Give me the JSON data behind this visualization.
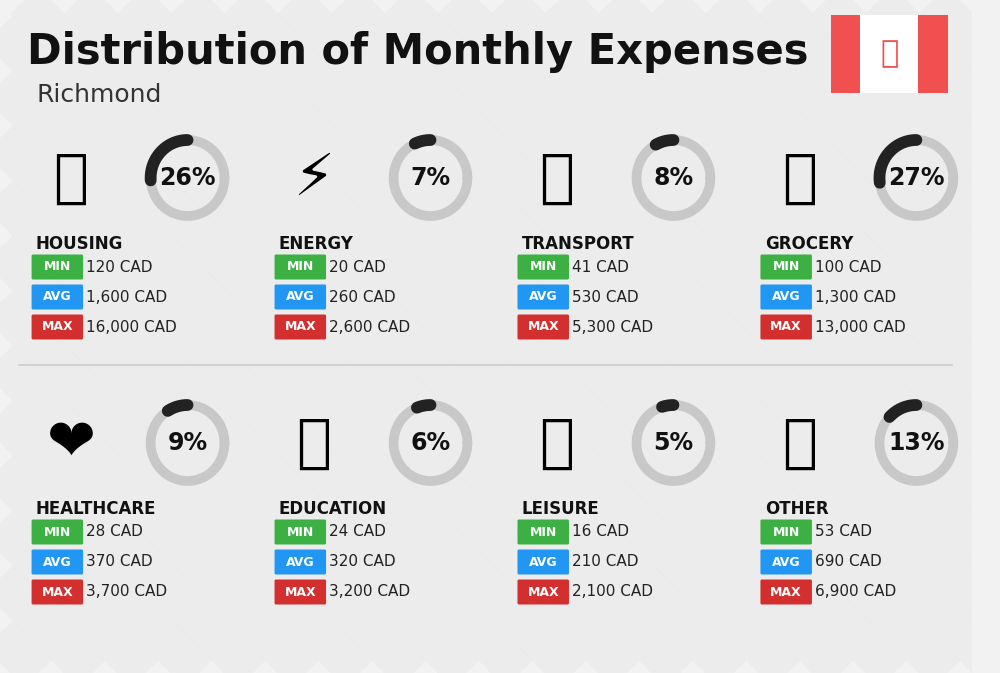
{
  "title": "Distribution of Monthly Expenses",
  "subtitle": "Richmond",
  "background_color": "#f2f2f2",
  "stripe_color": "#e8e8e8",
  "categories": [
    {
      "name": "HOUSING",
      "percent": 26,
      "min": "120 CAD",
      "avg": "1,600 CAD",
      "max": "16,000 CAD",
      "icon": "🏗",
      "row": 0,
      "col": 0
    },
    {
      "name": "ENERGY",
      "percent": 7,
      "min": "20 CAD",
      "avg": "260 CAD",
      "max": "2,600 CAD",
      "icon": "⚡",
      "row": 0,
      "col": 1
    },
    {
      "name": "TRANSPORT",
      "percent": 8,
      "min": "41 CAD",
      "avg": "530 CAD",
      "max": "5,300 CAD",
      "icon": "🚌",
      "row": 0,
      "col": 2
    },
    {
      "name": "GROCERY",
      "percent": 27,
      "min": "100 CAD",
      "avg": "1,300 CAD",
      "max": "13,000 CAD",
      "icon": "🛒",
      "row": 0,
      "col": 3
    },
    {
      "name": "HEALTHCARE",
      "percent": 9,
      "min": "28 CAD",
      "avg": "370 CAD",
      "max": "3,700 CAD",
      "icon": "❤",
      "row": 1,
      "col": 0
    },
    {
      "name": "EDUCATION",
      "percent": 6,
      "min": "24 CAD",
      "avg": "320 CAD",
      "max": "3,200 CAD",
      "icon": "🎓",
      "row": 1,
      "col": 1
    },
    {
      "name": "LEISURE",
      "percent": 5,
      "min": "16 CAD",
      "avg": "210 CAD",
      "max": "2,100 CAD",
      "icon": "🛍",
      "row": 1,
      "col": 2
    },
    {
      "name": "OTHER",
      "percent": 13,
      "min": "53 CAD",
      "avg": "690 CAD",
      "max": "6,900 CAD",
      "icon": "💰",
      "row": 1,
      "col": 3
    }
  ],
  "min_color": "#3cb043",
  "avg_color": "#2196f3",
  "max_color": "#d32f2f",
  "arc_dark_color": "#222222",
  "arc_light_color": "#c8c8c8",
  "flag_red": "#f05050",
  "title_fontsize": 30,
  "subtitle_fontsize": 18,
  "cat_fontsize": 12,
  "val_fontsize": 11,
  "pct_fontsize": 17,
  "badge_fontsize": 9
}
